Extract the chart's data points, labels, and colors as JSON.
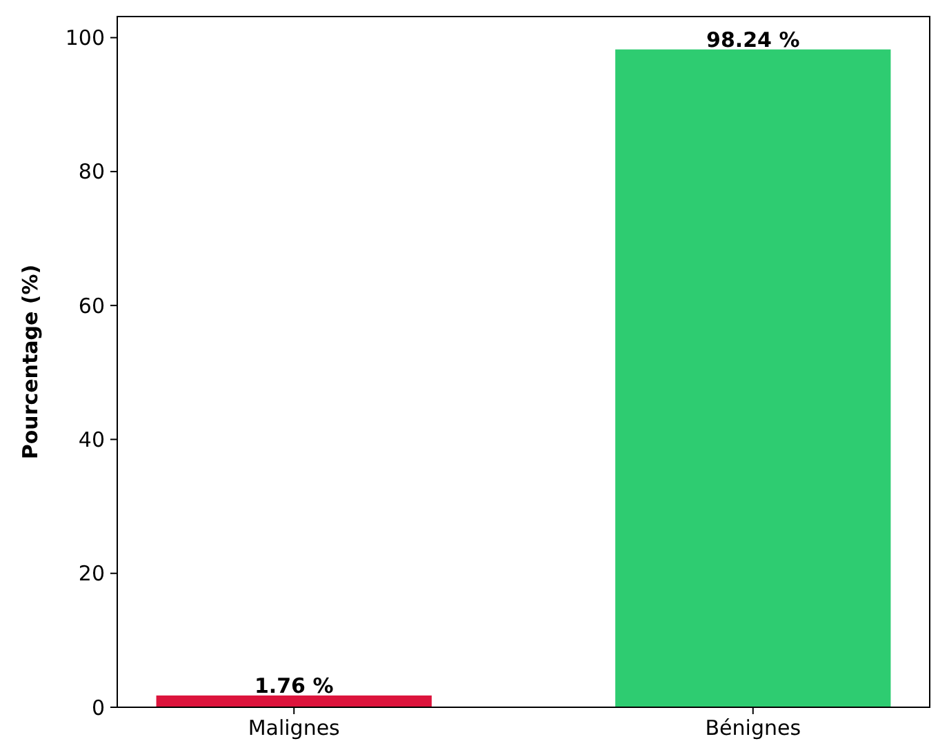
{
  "chart_data": {
    "type": "bar",
    "ylabel": "Pourcentage (%)",
    "categories": [
      "Malignes",
      "Bénignes"
    ],
    "values": [
      1.76,
      98.24
    ],
    "colors": [
      "#dc143c",
      "#2ecc71"
    ],
    "value_labels": [
      "1.76 %",
      "98.24 %"
    ],
    "ylim": [
      0,
      103.15
    ],
    "yticks": [
      0,
      20,
      40,
      60,
      80,
      100
    ],
    "grid": false
  }
}
